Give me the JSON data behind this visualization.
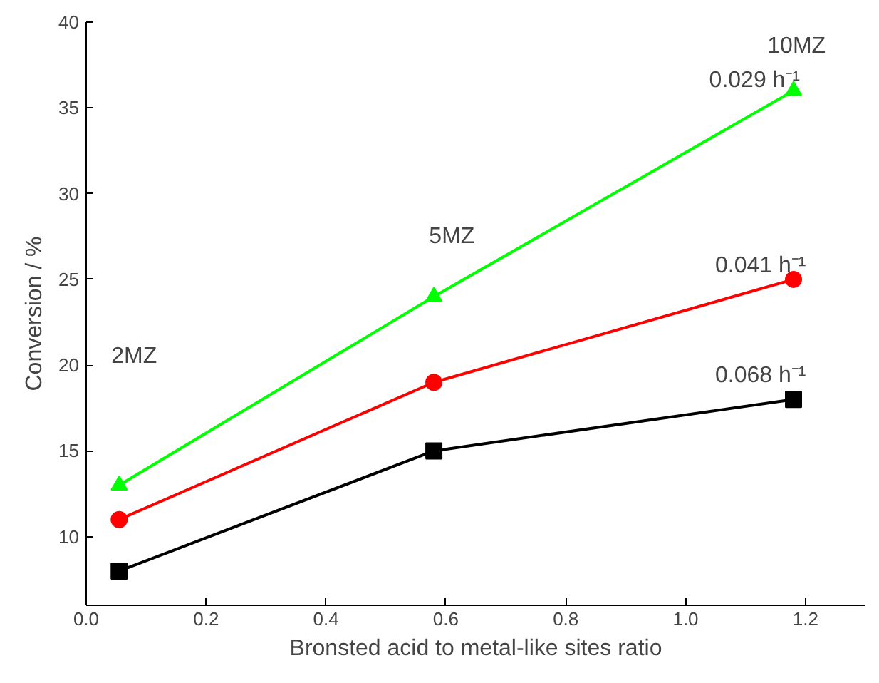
{
  "chart_data": {
    "type": "line",
    "xlabel": "Bronsted acid to metal-like sites ratio",
    "ylabel": "Conversion / %",
    "x": [
      0.055,
      0.58,
      1.18
    ],
    "series": [
      {
        "color": "#000000",
        "values": [
          8,
          15,
          18
        ],
        "marker": "square"
      },
      {
        "color": "#ff0000",
        "values": [
          11,
          19,
          25
        ],
        "marker": "circle"
      },
      {
        "color": "#00ff00",
        "values": [
          13,
          24,
          36
        ],
        "marker": "triangle"
      }
    ],
    "xlim": [
      0.0,
      1.3
    ],
    "xticks": [
      {
        "value": 0,
        "label": "0.0"
      },
      0.2,
      0.4,
      0.6,
      0.8,
      {
        "value": 1,
        "label": "1.0"
      },
      1.2
    ],
    "ylim": [
      6,
      40
    ],
    "yticks": [
      10,
      15,
      20,
      25,
      30,
      35,
      40
    ],
    "grid": false,
    "line_style": "solid",
    "annotations": [
      "2MZ",
      "5MZ",
      "10MZ",
      "0.029 h⁻¹",
      "0.041 h⁻¹",
      "0.068 h⁻¹"
    ]
  }
}
